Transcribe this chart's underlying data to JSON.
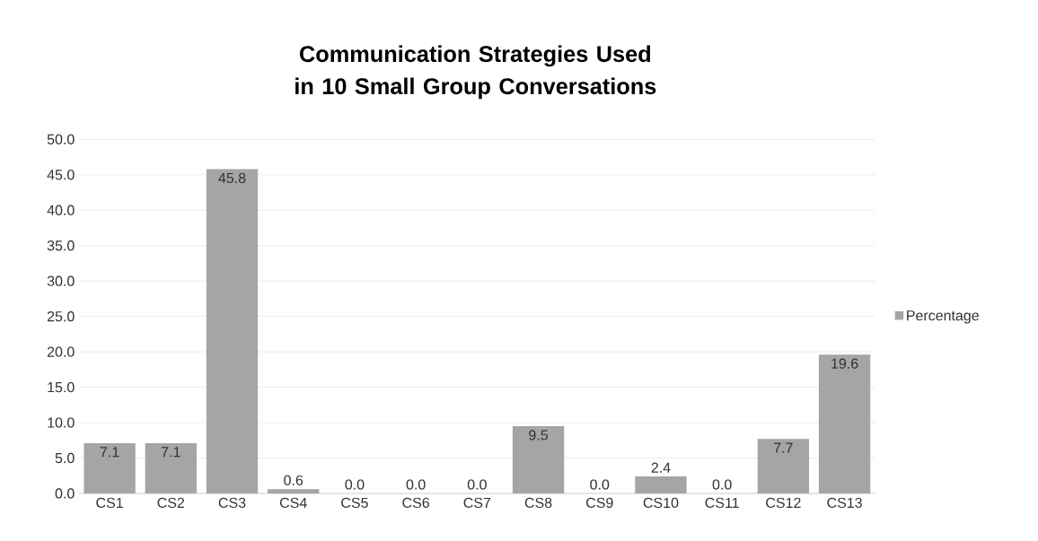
{
  "chart_data": {
    "type": "bar",
    "title": "Communication Strategies Used in 10 Small Group Conversations",
    "categories": [
      "CS1",
      "CS2",
      "CS3",
      "CS4",
      "CS5",
      "CS6",
      "CS7",
      "CS8",
      "CS9",
      "CS10",
      "CS11",
      "CS12",
      "CS13"
    ],
    "series": [
      {
        "name": "Percentage",
        "color": "#a5a5a5",
        "values": [
          7.1,
          7.1,
          45.8,
          0.6,
          0.0,
          0.0,
          0.0,
          9.5,
          0.0,
          2.4,
          0.0,
          7.7,
          19.6
        ],
        "value_labels": [
          "7.1",
          "7.1",
          "45.8",
          "0.6",
          "0.0",
          "0.0",
          "0.0",
          "9.5",
          "0.0",
          "2.4",
          "0.0",
          "7.7",
          "19.6"
        ]
      }
    ],
    "ylim": [
      0,
      50
    ],
    "yticks": [
      {
        "value": 0,
        "label": "0.0"
      },
      {
        "value": 5,
        "label": "5.0"
      },
      {
        "value": 10,
        "label": "10.0"
      },
      {
        "value": 15,
        "label": "15.0"
      },
      {
        "value": 20,
        "label": "20.0"
      },
      {
        "value": 25,
        "label": "25.0"
      },
      {
        "value": 30,
        "label": "30.0"
      },
      {
        "value": 35,
        "label": "35.0"
      },
      {
        "value": 40,
        "label": "40.0"
      },
      {
        "value": 45,
        "label": "45.0"
      },
      {
        "value": 50,
        "label": "50.0"
      }
    ],
    "grid": "y",
    "legend": "right"
  }
}
